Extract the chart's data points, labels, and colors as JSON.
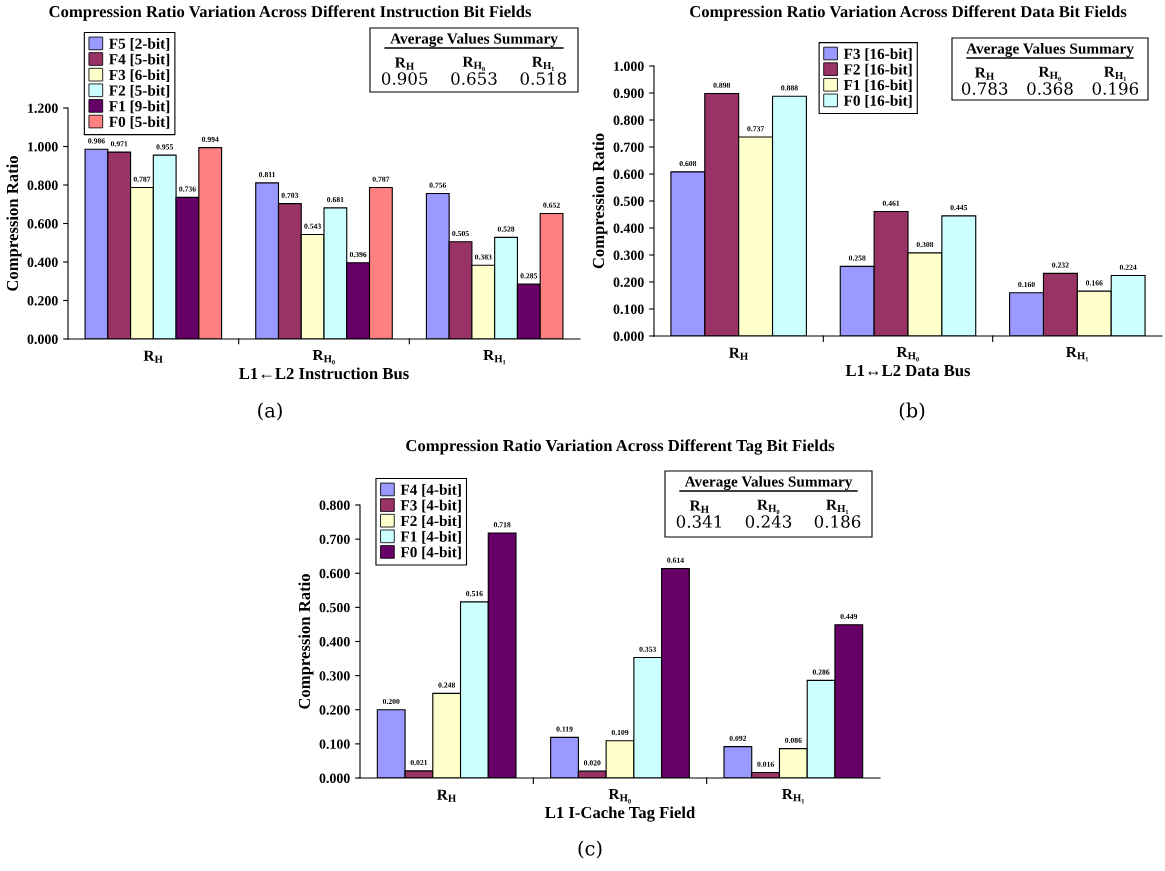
{
  "chart_data": [
    {
      "type": "bar",
      "title": "Compression Ratio Variation Across Different Instruction Bit Fields",
      "xlabel": "L1←L2 Instruction Bus",
      "ylabel": "Compression Ratio",
      "categories": [
        "R$_{H}$",
        "R$_{H₀}$",
        "R$_{H₁}$"
      ],
      "series": [
        {
          "name": "F5 [2-bit]",
          "color": "#9999ff",
          "values": [
            0.986,
            0.811,
            0.756
          ],
          "value_labels": [
            "0.986",
            "0.811",
            "0.756"
          ]
        },
        {
          "name": "F4 [5-bit]",
          "color": "#993366",
          "values": [
            0.971,
            0.703,
            0.505
          ],
          "value_labels": [
            "0.971",
            "0.703",
            "0.505"
          ]
        },
        {
          "name": "F3 [6-bit]",
          "color": "#ffffcc",
          "values": [
            0.787,
            0.543,
            0.383
          ],
          "value_labels": [
            "0.787",
            "0.543",
            "0.383"
          ]
        },
        {
          "name": "F2 [5-bit]",
          "color": "#ccffff",
          "values": [
            0.955,
            0.681,
            0.528
          ],
          "value_labels": [
            "0.955",
            "0.681",
            "0.528"
          ]
        },
        {
          "name": "F1 [9-bit]",
          "color": "#660066",
          "values": [
            0.736,
            0.396,
            0.285
          ],
          "value_labels": [
            "0.736",
            "0.396",
            "0.285"
          ]
        },
        {
          "name": "F0 [5-bit]",
          "color": "#ff8080",
          "values": [
            0.994,
            0.787,
            0.652
          ],
          "value_labels": [
            "0.994",
            "0.787",
            "0.652"
          ]
        }
      ],
      "ylim": [
        0,
        1.2
      ],
      "yticks": [
        {
          "value": 0,
          "label": "0.000"
        },
        {
          "value": 0.2,
          "label": "0.200"
        },
        {
          "value": 0.4,
          "label": "0.400"
        },
        {
          "value": 0.6,
          "label": "0.600"
        },
        {
          "value": 0.8,
          "label": "0.800"
        },
        {
          "value": 1.0,
          "label": "1.000"
        },
        {
          "value": 1.2,
          "label": "1.200"
        }
      ],
      "grid": false,
      "legend": "top left",
      "annotations": [
        "Average Values Summary",
        "R$_{H}$",
        "R$_{H₀}$",
        "R$_{H₁}$",
        "0.905",
        "0.653",
        "0.518",
        "(a)"
      ]
    },
    {
      "type": "bar",
      "title": "Compression Ratio Variation Across Different Data Bit Fields",
      "xlabel": "L1↔L2 Data Bus",
      "ylabel": "Compression Ratio",
      "categories": [
        "R$_{H}$",
        "R$_{H₀}$",
        "R$_{H₁}$"
      ],
      "series": [
        {
          "name": "F3 [16-bit]",
          "color": "#9999ff",
          "values": [
            0.608,
            0.258,
            0.16
          ],
          "value_labels": [
            "0.608",
            "0.258",
            "0.160"
          ]
        },
        {
          "name": "F2 [16-bit]",
          "color": "#993366",
          "values": [
            0.898,
            0.461,
            0.232
          ],
          "value_labels": [
            "0.898",
            "0.461",
            "0.232"
          ]
        },
        {
          "name": "F1 [16-bit]",
          "color": "#ffffcc",
          "values": [
            0.737,
            0.308,
            0.166
          ],
          "value_labels": [
            "0.737",
            "0.308",
            "0.166"
          ]
        },
        {
          "name": "F0 [16-bit]",
          "color": "#ccffff",
          "values": [
            0.888,
            0.445,
            0.224
          ],
          "value_labels": [
            "0.888",
            "0.445",
            "0.224"
          ]
        }
      ],
      "ylim": [
        0,
        1.0
      ],
      "yticks": [
        {
          "value": 0,
          "label": "0.000"
        },
        {
          "value": 0.1,
          "label": "0.100"
        },
        {
          "value": 0.2,
          "label": "0.200"
        },
        {
          "value": 0.3,
          "label": "0.300"
        },
        {
          "value": 0.4,
          "label": "0.400"
        },
        {
          "value": 0.5,
          "label": "0.500"
        },
        {
          "value": 0.6,
          "label": "0.600"
        },
        {
          "value": 0.7,
          "label": "0.700"
        },
        {
          "value": 0.8,
          "label": "0.800"
        },
        {
          "value": 0.9,
          "label": "0.900"
        },
        {
          "value": 1.0,
          "label": "1.000"
        }
      ],
      "grid": false,
      "legend": "top",
      "annotations": [
        "Average Values Summary",
        "R$_{H}$",
        "R$_{H₀}$",
        "R$_{H₁}$",
        "0.783",
        "0.368",
        "0.196",
        "(b)"
      ]
    },
    {
      "type": "bar",
      "title": "Compression Ratio Variation Across Different Tag Bit Fields",
      "xlabel": "L1 I-Cache Tag Field",
      "ylabel": "Compression Ratio",
      "categories": [
        "R$_{H}$",
        "R$_{H₀}$",
        "R$_{H₁}$"
      ],
      "series": [
        {
          "name": "F4 [4-bit]",
          "color": "#9999ff",
          "values": [
            0.2,
            0.119,
            0.092
          ],
          "value_labels": [
            "0.200",
            "0.119",
            "0.092"
          ]
        },
        {
          "name": "F3 [4-bit]",
          "color": "#993366",
          "values": [
            0.021,
            0.02,
            0.016
          ],
          "value_labels": [
            "0.021",
            "0.020",
            "0.016"
          ]
        },
        {
          "name": "F2 [4-bit]",
          "color": "#ffffcc",
          "values": [
            0.248,
            0.109,
            0.086
          ],
          "value_labels": [
            "0.248",
            "0.109",
            "0.086"
          ]
        },
        {
          "name": "F1 [4-bit]",
          "color": "#ccffff",
          "values": [
            0.516,
            0.353,
            0.286
          ],
          "value_labels": [
            "0.516",
            "0.353",
            "0.286"
          ]
        },
        {
          "name": "F0 [4-bit]",
          "color": "#660066",
          "values": [
            0.718,
            0.614,
            0.449
          ],
          "value_labels": [
            "0.718",
            "0.614",
            "0.449"
          ]
        }
      ],
      "ylim": [
        0,
        0.8
      ],
      "yticks": [
        {
          "value": 0,
          "label": "0.000"
        },
        {
          "value": 0.1,
          "label": "0.100"
        },
        {
          "value": 0.2,
          "label": "0.200"
        },
        {
          "value": 0.3,
          "label": "0.300"
        },
        {
          "value": 0.4,
          "label": "0.400"
        },
        {
          "value": 0.5,
          "label": "0.500"
        },
        {
          "value": 0.6,
          "label": "0.600"
        },
        {
          "value": 0.7,
          "label": "0.700"
        },
        {
          "value": 0.8,
          "label": "0.800"
        }
      ],
      "grid": false,
      "legend": "top left",
      "annotations": [
        "Average Values Summary",
        "R$_{H}$",
        "R$_{H₀}$",
        "R$_{H₁}$",
        "0.341",
        "0.243",
        "0.186",
        "(c)"
      ]
    }
  ]
}
